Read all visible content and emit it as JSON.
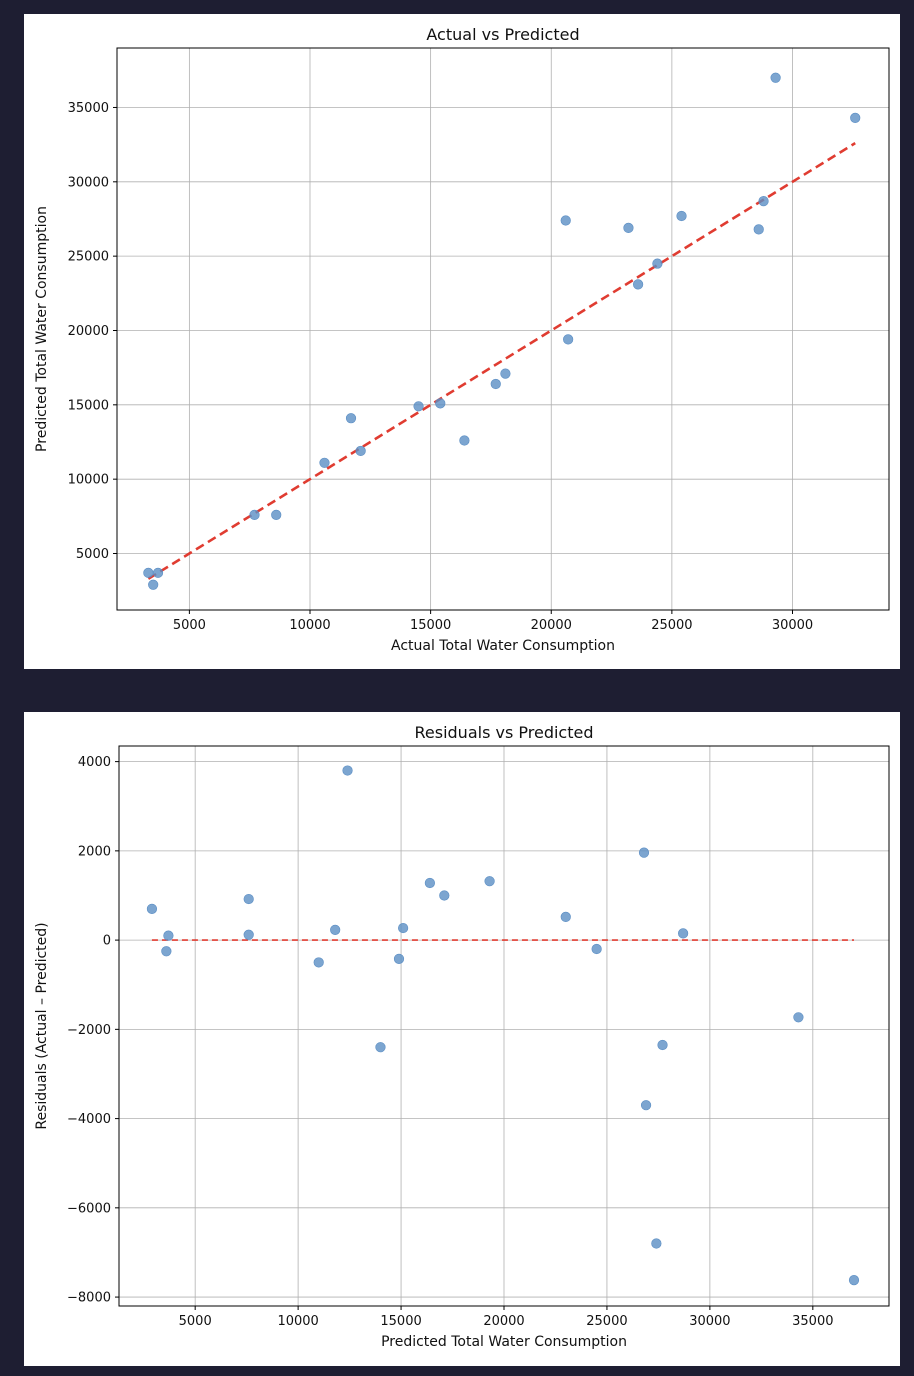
{
  "chart_data": [
    {
      "type": "scatter",
      "title": "Actual vs Predicted",
      "xlabel": "Actual Total Water Consumption",
      "ylabel": "Predicted Total Water Consumption",
      "xlim": [
        2000,
        34000
      ],
      "ylim": [
        1200,
        39000
      ],
      "xticks": [
        5000,
        10000,
        15000,
        20000,
        25000,
        30000
      ],
      "yticks": [
        5000,
        10000,
        15000,
        20000,
        25000,
        30000,
        35000
      ],
      "grid": true,
      "point_color": "#5b8ec4",
      "reference_line": {
        "style": "dashed",
        "color": "#e03c31",
        "from": [
          3300,
          3300
        ],
        "to": [
          32600,
          32600
        ]
      },
      "points": [
        {
          "x": 3300,
          "y": 3700
        },
        {
          "x": 3500,
          "y": 2900
        },
        {
          "x": 3700,
          "y": 3700
        },
        {
          "x": 7700,
          "y": 7600
        },
        {
          "x": 8600,
          "y": 7600
        },
        {
          "x": 10600,
          "y": 11100
        },
        {
          "x": 11700,
          "y": 14100
        },
        {
          "x": 12100,
          "y": 11900
        },
        {
          "x": 14500,
          "y": 14900
        },
        {
          "x": 15400,
          "y": 15100
        },
        {
          "x": 16400,
          "y": 12600
        },
        {
          "x": 17700,
          "y": 16400
        },
        {
          "x": 18100,
          "y": 17100
        },
        {
          "x": 20600,
          "y": 27400
        },
        {
          "x": 20700,
          "y": 19400
        },
        {
          "x": 23200,
          "y": 26900
        },
        {
          "x": 23600,
          "y": 23100
        },
        {
          "x": 24400,
          "y": 24500
        },
        {
          "x": 25400,
          "y": 27700
        },
        {
          "x": 28600,
          "y": 26800
        },
        {
          "x": 28800,
          "y": 28700
        },
        {
          "x": 29300,
          "y": 37000
        },
        {
          "x": 32600,
          "y": 34300
        }
      ]
    },
    {
      "type": "scatter",
      "title": "Residuals vs Predicted",
      "xlabel": "Predicted Total Water Consumption",
      "ylabel": "Residuals (Actual – Predicted)",
      "xlim": [
        1300,
        38700
      ],
      "ylim": [
        -8200,
        4350
      ],
      "xticks": [
        5000,
        10000,
        15000,
        20000,
        25000,
        30000,
        35000
      ],
      "yticks": [
        -8000,
        -6000,
        -4000,
        -2000,
        0,
        2000,
        4000
      ],
      "grid": true,
      "point_color": "#5b8ec4",
      "reference_line": {
        "style": "dashed",
        "color": "#e03c31",
        "from": [
          2900,
          0
        ],
        "to": [
          37000,
          0
        ]
      },
      "points": [
        {
          "x": 2900,
          "y": 700
        },
        {
          "x": 3700,
          "y": 100
        },
        {
          "x": 3600,
          "y": -250
        },
        {
          "x": 7600,
          "y": 920
        },
        {
          "x": 7600,
          "y": 120
        },
        {
          "x": 11000,
          "y": -500
        },
        {
          "x": 11800,
          "y": 230
        },
        {
          "x": 12400,
          "y": 3800
        },
        {
          "x": 14000,
          "y": -2400
        },
        {
          "x": 14900,
          "y": -420
        },
        {
          "x": 15100,
          "y": 270
        },
        {
          "x": 16400,
          "y": 1280
        },
        {
          "x": 17100,
          "y": 1000
        },
        {
          "x": 19300,
          "y": 1320
        },
        {
          "x": 23000,
          "y": 520
        },
        {
          "x": 24500,
          "y": -200
        },
        {
          "x": 26800,
          "y": 1960
        },
        {
          "x": 26900,
          "y": -3700
        },
        {
          "x": 27400,
          "y": -6800
        },
        {
          "x": 27700,
          "y": -2350
        },
        {
          "x": 28700,
          "y": 150
        },
        {
          "x": 34300,
          "y": -1730
        },
        {
          "x": 37000,
          "y": -7620
        }
      ]
    }
  ]
}
